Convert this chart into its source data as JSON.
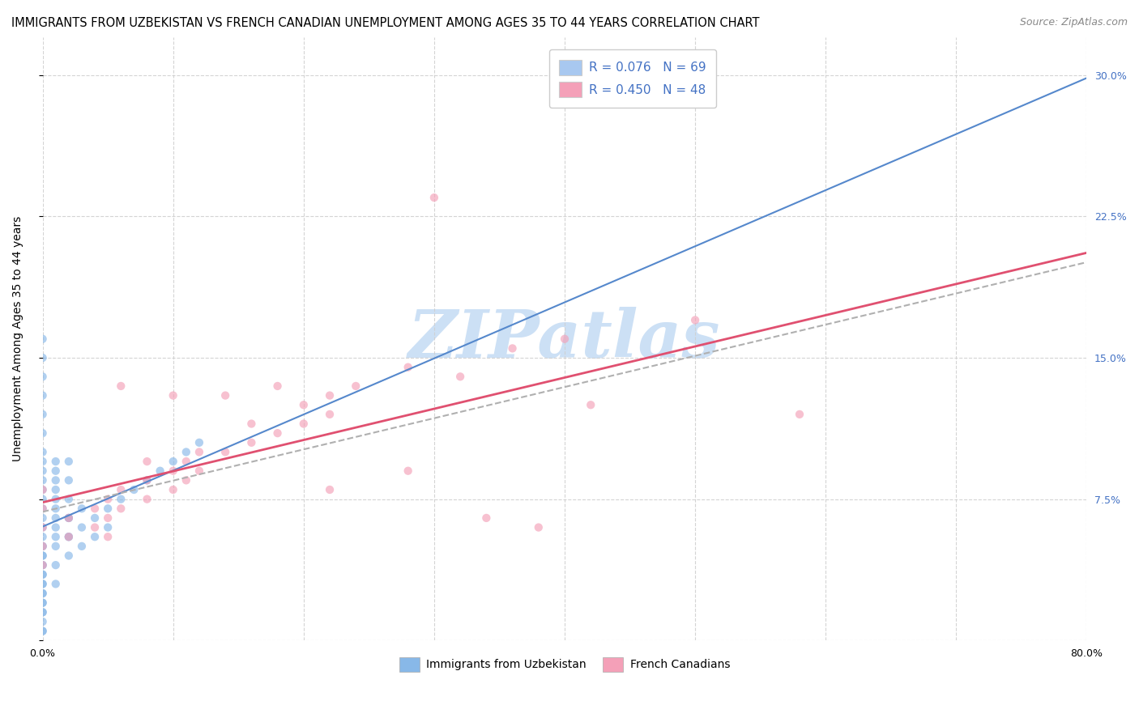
{
  "title": "IMMIGRANTS FROM UZBEKISTAN VS FRENCH CANADIAN UNEMPLOYMENT AMONG AGES 35 TO 44 YEARS CORRELATION CHART",
  "source": "Source: ZipAtlas.com",
  "ylabel": "Unemployment Among Ages 35 to 44 years",
  "xlim": [
    0.0,
    0.8
  ],
  "ylim": [
    0.0,
    0.32
  ],
  "xticks": [
    0.0,
    0.1,
    0.2,
    0.3,
    0.4,
    0.5,
    0.6,
    0.7,
    0.8
  ],
  "xtick_labels": [
    "0.0%",
    "",
    "",
    "",
    "",
    "",
    "",
    "",
    "80.0%"
  ],
  "yticks": [
    0.0,
    0.075,
    0.15,
    0.225,
    0.3
  ],
  "ytick_labels_right": [
    "",
    "7.5%",
    "15.0%",
    "22.5%",
    "30.0%"
  ],
  "legend_entries": [
    {
      "label": "Immigrants from Uzbekistan",
      "color": "#a8c8f0",
      "R": 0.076,
      "N": 69
    },
    {
      "label": "French Canadians",
      "color": "#f4a0b8",
      "R": 0.45,
      "N": 48
    }
  ],
  "watermark": "ZIPatlas",
  "watermark_color": "#cce0f5",
  "background_color": "#ffffff",
  "grid_color": "#d0d0d0",
  "scatter_blue_color": "#88b8e8",
  "scatter_pink_color": "#f4a0b8",
  "scatter_alpha": 0.65,
  "scatter_size": 55,
  "trend_blue_color": "#5588cc",
  "trend_pink_color": "#e05070",
  "trend_dash_color": "#b0b0b0",
  "blue_x": [
    0.0,
    0.0,
    0.0,
    0.0,
    0.0,
    0.0,
    0.0,
    0.0,
    0.0,
    0.0,
    0.0,
    0.0,
    0.0,
    0.0,
    0.0,
    0.0,
    0.0,
    0.0,
    0.0,
    0.0,
    0.0,
    0.0,
    0.0,
    0.0,
    0.0,
    0.01,
    0.01,
    0.01,
    0.01,
    0.01,
    0.01,
    0.01,
    0.02,
    0.02,
    0.02,
    0.02,
    0.03,
    0.03,
    0.03,
    0.04,
    0.04,
    0.05,
    0.05,
    0.06,
    0.07,
    0.08,
    0.09,
    0.1,
    0.11,
    0.12,
    0.0,
    0.0,
    0.01,
    0.01,
    0.02,
    0.0,
    0.0,
    0.0,
    0.01,
    0.02,
    0.0,
    0.0,
    0.0,
    0.01,
    0.0,
    0.0,
    0.01,
    0.02,
    0.02
  ],
  "blue_y": [
    0.045,
    0.05,
    0.055,
    0.06,
    0.065,
    0.07,
    0.075,
    0.08,
    0.085,
    0.09,
    0.095,
    0.1,
    0.11,
    0.12,
    0.025,
    0.015,
    0.005,
    0.03,
    0.035,
    0.04,
    0.16,
    0.13,
    0.14,
    0.15,
    0.02,
    0.05,
    0.06,
    0.07,
    0.08,
    0.09,
    0.04,
    0.03,
    0.055,
    0.065,
    0.075,
    0.045,
    0.06,
    0.07,
    0.05,
    0.065,
    0.055,
    0.07,
    0.06,
    0.075,
    0.08,
    0.085,
    0.09,
    0.095,
    0.1,
    0.105,
    0.045,
    0.035,
    0.085,
    0.095,
    0.085,
    0.025,
    0.015,
    0.005,
    0.055,
    0.095,
    0.02,
    0.03,
    0.04,
    0.065,
    0.01,
    0.05,
    0.075,
    0.055,
    0.065
  ],
  "pink_x": [
    0.0,
    0.0,
    0.0,
    0.0,
    0.0,
    0.02,
    0.02,
    0.04,
    0.04,
    0.05,
    0.05,
    0.05,
    0.06,
    0.06,
    0.08,
    0.08,
    0.1,
    0.1,
    0.11,
    0.11,
    0.12,
    0.12,
    0.14,
    0.16,
    0.16,
    0.18,
    0.2,
    0.2,
    0.22,
    0.22,
    0.24,
    0.28,
    0.3,
    0.32,
    0.36,
    0.4,
    0.42,
    0.5,
    0.58,
    0.06,
    0.08,
    0.1,
    0.14,
    0.18,
    0.22,
    0.28,
    0.34,
    0.38
  ],
  "pink_y": [
    0.05,
    0.06,
    0.07,
    0.08,
    0.04,
    0.055,
    0.065,
    0.06,
    0.07,
    0.065,
    0.075,
    0.055,
    0.07,
    0.08,
    0.075,
    0.085,
    0.08,
    0.09,
    0.085,
    0.095,
    0.09,
    0.1,
    0.1,
    0.105,
    0.115,
    0.11,
    0.115,
    0.125,
    0.12,
    0.13,
    0.135,
    0.145,
    0.235,
    0.14,
    0.155,
    0.16,
    0.125,
    0.17,
    0.12,
    0.135,
    0.095,
    0.13,
    0.13,
    0.135,
    0.08,
    0.09,
    0.065,
    0.06
  ]
}
